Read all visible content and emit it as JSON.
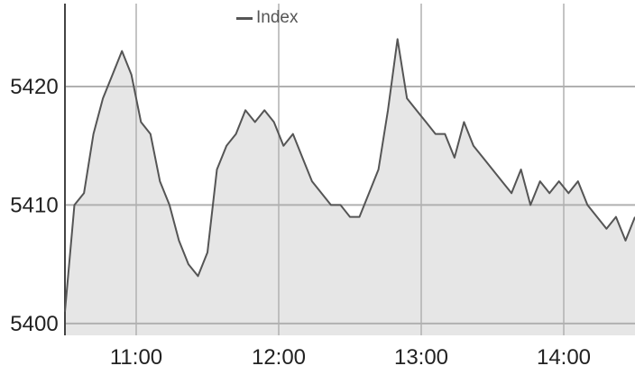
{
  "chart_data": {
    "type": "area",
    "title": "",
    "xlabel": "",
    "ylabel": "",
    "legend": {
      "position": "top-center",
      "entries": [
        "Index"
      ]
    },
    "grid": true,
    "x_ticks": [
      "11:00",
      "12:00",
      "13:00",
      "14:00"
    ],
    "y_ticks": [
      5400,
      5410,
      5420
    ],
    "xlim": [
      "10:30",
      "14:30"
    ],
    "ylim": [
      5399,
      5427
    ],
    "colors": {
      "line": "#555555",
      "fill": "#e6e6e6",
      "grid": "#b0b0b0"
    },
    "series": [
      {
        "name": "Index",
        "x": [
          "10:30",
          "10:34",
          "10:38",
          "10:42",
          "10:46",
          "10:50",
          "10:54",
          "10:58",
          "11:02",
          "11:06",
          "11:10",
          "11:14",
          "11:18",
          "11:22",
          "11:26",
          "11:30",
          "11:34",
          "11:38",
          "11:42",
          "11:46",
          "11:50",
          "11:54",
          "11:58",
          "12:02",
          "12:06",
          "12:10",
          "12:14",
          "12:18",
          "12:22",
          "12:26",
          "12:30",
          "12:34",
          "12:38",
          "12:42",
          "12:46",
          "12:50",
          "12:54",
          "12:58",
          "13:02",
          "13:06",
          "13:10",
          "13:14",
          "13:18",
          "13:22",
          "13:26",
          "13:30",
          "13:34",
          "13:38",
          "13:42",
          "13:46",
          "13:50",
          "13:54",
          "13:58",
          "14:02",
          "14:06",
          "14:10",
          "14:14",
          "14:18",
          "14:22",
          "14:26",
          "14:30"
        ],
        "values": [
          5401,
          5410,
          5411,
          5416,
          5419,
          5421,
          5423,
          5421,
          5417,
          5416,
          5412,
          5410,
          5407,
          5405,
          5404,
          5406,
          5413,
          5415,
          5416,
          5418,
          5417,
          5418,
          5417,
          5415,
          5416,
          5414,
          5412,
          5411,
          5410,
          5410,
          5409,
          5409,
          5411,
          5413,
          5418,
          5424,
          5419,
          5418,
          5417,
          5416,
          5416,
          5414,
          5417,
          5415,
          5414,
          5413,
          5412,
          5411,
          5413,
          5410,
          5412,
          5411,
          5412,
          5411,
          5412,
          5410,
          5409,
          5408,
          5409,
          5407,
          5409
        ]
      }
    ]
  }
}
